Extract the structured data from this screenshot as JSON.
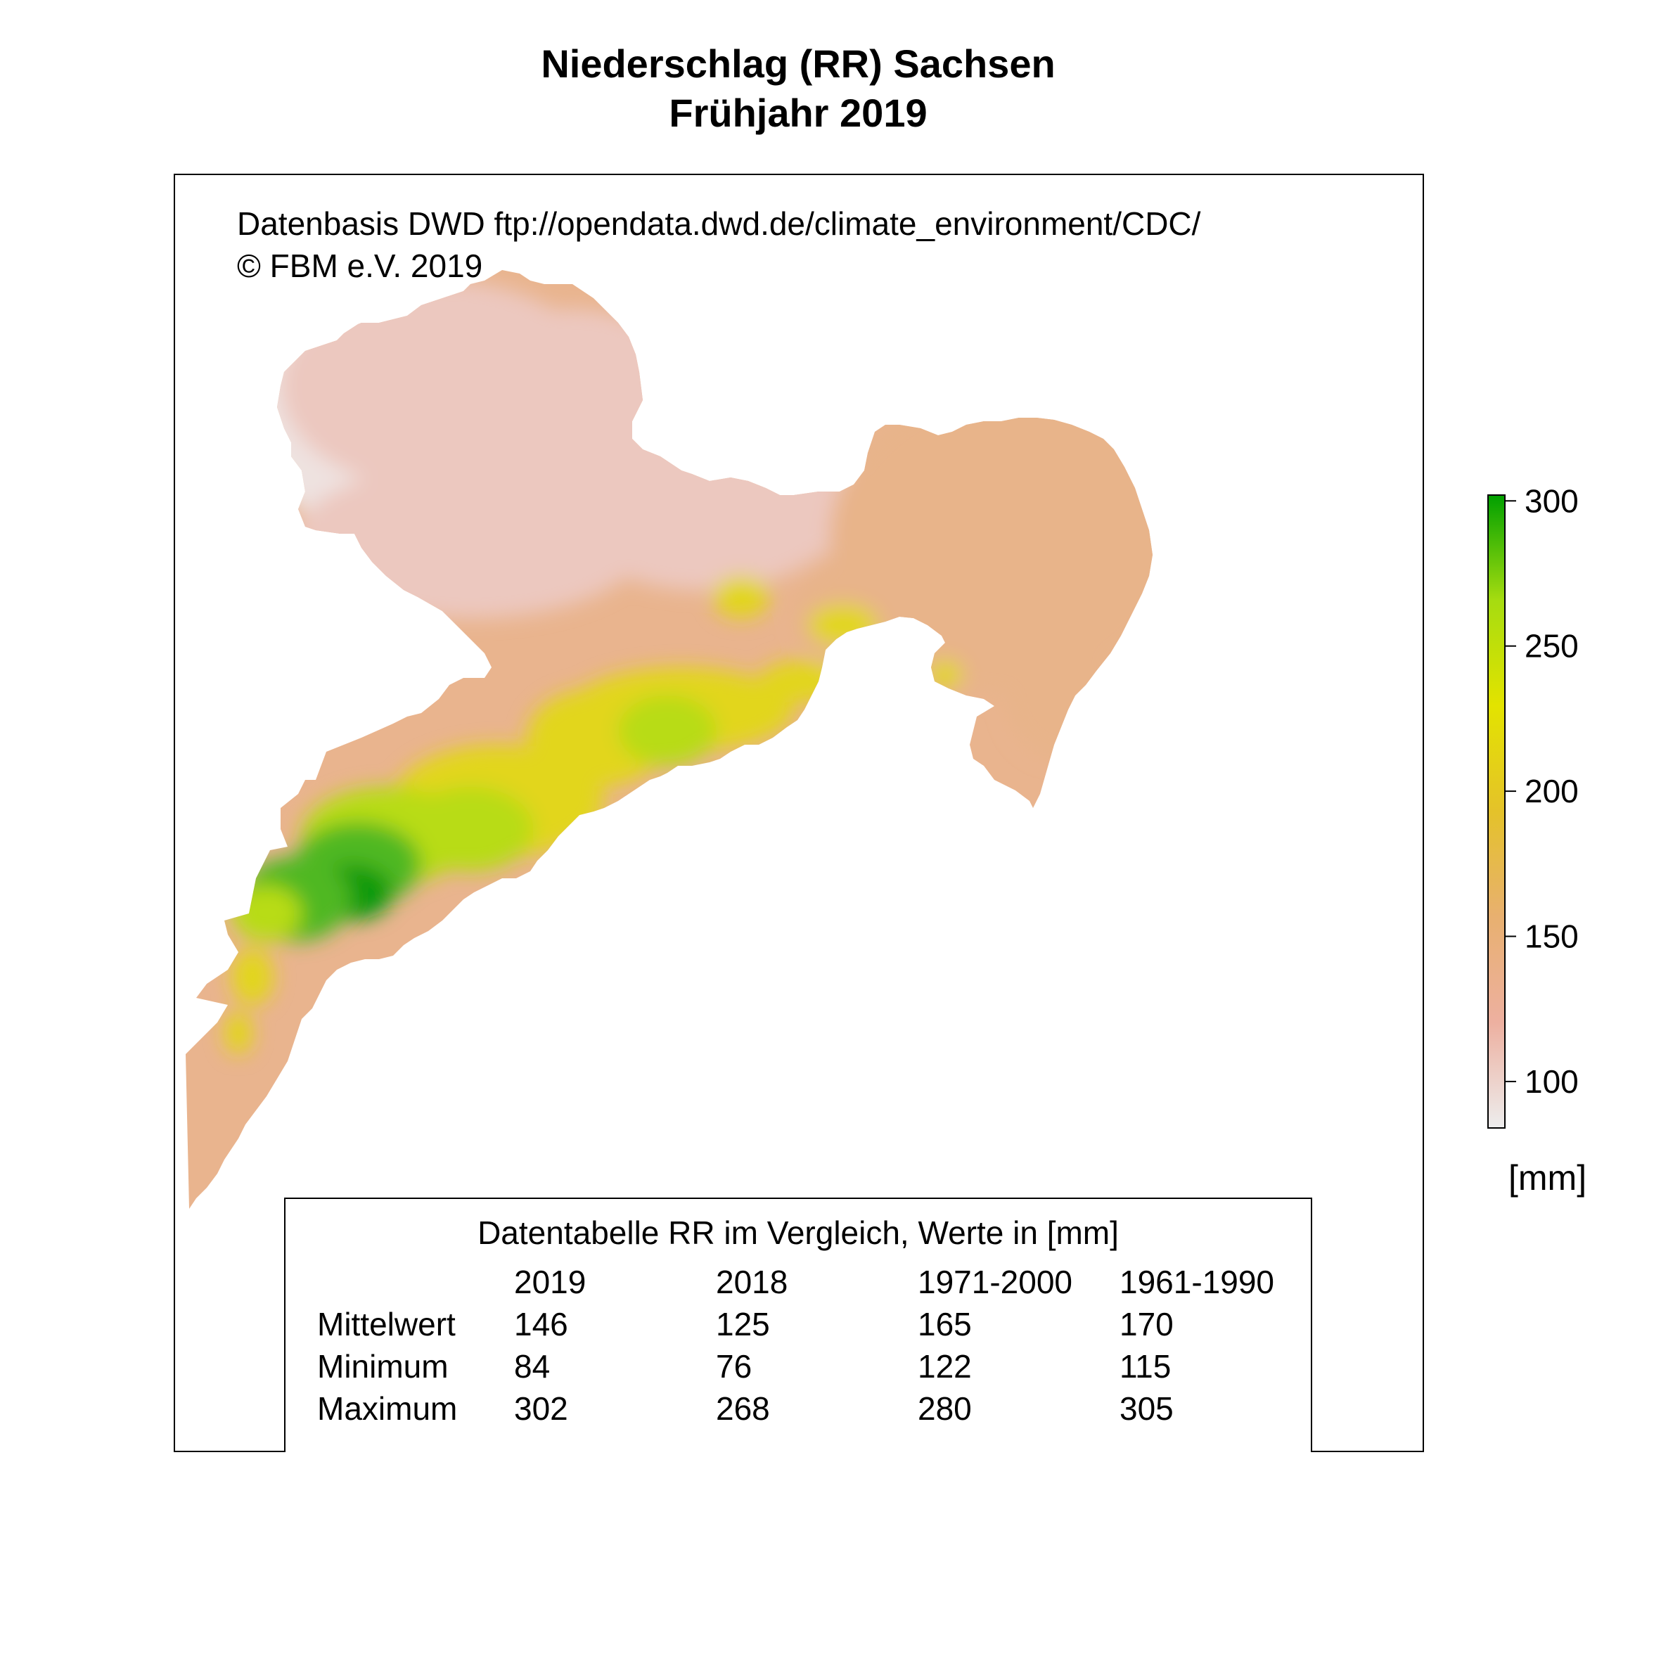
{
  "title": {
    "line1": "Niederschlag (RR) Sachsen",
    "line2": "Frühjahr 2019"
  },
  "credits": {
    "source": "Datenbasis DWD ftp://opendata.dwd.de/climate_environment/CDC/",
    "copyright": "© FBM e.V. 2019"
  },
  "legend": {
    "unit": "[mm]",
    "min": 84,
    "max": 302,
    "ticks": [
      "300",
      "250",
      "200",
      "150",
      "100"
    ],
    "tick_values": [
      300,
      250,
      200,
      150,
      100
    ],
    "colors": [
      "#ededed",
      "#edb0a0",
      "#e8b070",
      "#e4c22a",
      "#e3e300",
      "#a6dc10",
      "#00a000"
    ]
  },
  "table": {
    "title": "Datentabelle RR im Vergleich, Werte in [mm]",
    "columns": [
      "2019",
      "2018",
      "1971-2000",
      "1961-1990"
    ],
    "rows": [
      {
        "label": "Mittelwert",
        "values": [
          "146",
          "125",
          "165",
          "170"
        ]
      },
      {
        "label": "Minimum",
        "values": [
          "84",
          "76",
          "122",
          "115"
        ]
      },
      {
        "label": "Maximum",
        "values": [
          "302",
          "268",
          "280",
          "305"
        ]
      }
    ]
  },
  "map": {
    "region": "Sachsen",
    "colors": {
      "light": "#eee2e0",
      "pink": "#ecc8bf",
      "salmon": "#e8b48a",
      "orange": "#e6b070",
      "yellow": "#e2d61a",
      "lime": "#b8dc14",
      "green": "#50b820",
      "darkgreen": "#0c9a0c"
    }
  }
}
